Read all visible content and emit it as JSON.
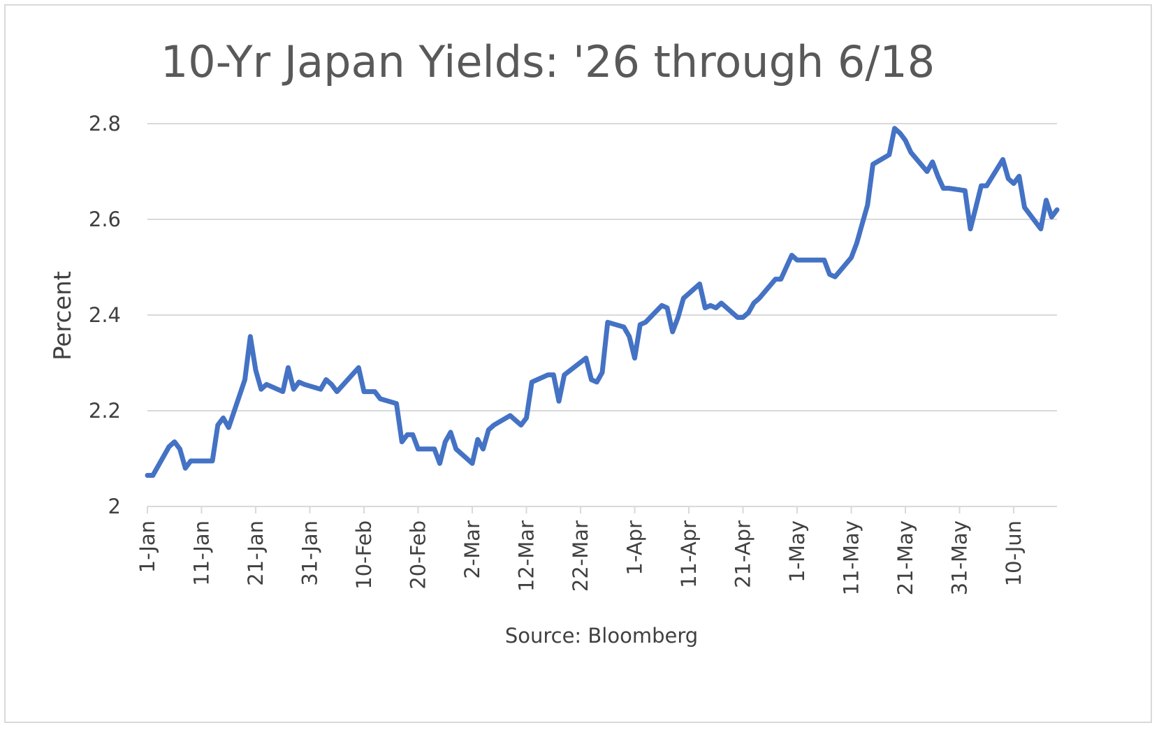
{
  "chart_data": {
    "type": "line",
    "title": "10-Yr Japan Yields: '26 through 6/18",
    "ylabel": "Percent",
    "xlabel": "Source: Bloomberg",
    "ylim": [
      2,
      2.8
    ],
    "yticks": [
      "2",
      "2.2",
      "2.4",
      "2.6",
      "2.8"
    ],
    "xticks": [
      "1-Jan",
      "11-Jan",
      "21-Jan",
      "31-Jan",
      "10-Feb",
      "20-Feb",
      "2-Mar",
      "12-Mar",
      "22-Mar",
      "1-Apr",
      "11-Apr",
      "21-Apr",
      "1-May",
      "11-May",
      "21-May",
      "31-May",
      "10-Jun"
    ],
    "xlim": [
      "2026-01-01",
      "2026-06-18"
    ],
    "grid": true,
    "series": [
      {
        "color": "#4472c4",
        "x": [
          "2026-01-01",
          "2026-01-02",
          "2026-01-05",
          "2026-01-06",
          "2026-01-07",
          "2026-01-08",
          "2026-01-09",
          "2026-01-13",
          "2026-01-14",
          "2026-01-15",
          "2026-01-16",
          "2026-01-19",
          "2026-01-20",
          "2026-01-21",
          "2026-01-22",
          "2026-01-23",
          "2026-01-26",
          "2026-01-27",
          "2026-01-28",
          "2026-01-29",
          "2026-01-30",
          "2026-02-02",
          "2026-02-03",
          "2026-02-04",
          "2026-02-05",
          "2026-02-09",
          "2026-02-10",
          "2026-02-12",
          "2026-02-13",
          "2026-02-16",
          "2026-02-17",
          "2026-02-18",
          "2026-02-19",
          "2026-02-20",
          "2026-02-23",
          "2026-02-24",
          "2026-02-25",
          "2026-02-26",
          "2026-02-27",
          "2026-03-02",
          "2026-03-03",
          "2026-03-04",
          "2026-03-05",
          "2026-03-06",
          "2026-03-09",
          "2026-03-10",
          "2026-03-11",
          "2026-03-12",
          "2026-03-13",
          "2026-03-16",
          "2026-03-17",
          "2026-03-18",
          "2026-03-19",
          "2026-03-23",
          "2026-03-24",
          "2026-03-25",
          "2026-03-26",
          "2026-03-27",
          "2026-03-30",
          "2026-03-31",
          "2026-04-01",
          "2026-04-02",
          "2026-04-03",
          "2026-04-06",
          "2026-04-07",
          "2026-04-08",
          "2026-04-09",
          "2026-04-10",
          "2026-04-13",
          "2026-04-14",
          "2026-04-15",
          "2026-04-16",
          "2026-04-17",
          "2026-04-20",
          "2026-04-21",
          "2026-04-22",
          "2026-04-23",
          "2026-04-24",
          "2026-04-27",
          "2026-04-28",
          "2026-04-30",
          "2026-05-01",
          "2026-05-06",
          "2026-05-07",
          "2026-05-08",
          "2026-05-11",
          "2026-05-12",
          "2026-05-13",
          "2026-05-14",
          "2026-05-15",
          "2026-05-18",
          "2026-05-19",
          "2026-05-20",
          "2026-05-21",
          "2026-05-22",
          "2026-05-25",
          "2026-05-26",
          "2026-05-27",
          "2026-05-28",
          "2026-05-29",
          "2026-06-01",
          "2026-06-02",
          "2026-06-03",
          "2026-06-04",
          "2026-06-05",
          "2026-06-08",
          "2026-06-09",
          "2026-06-10",
          "2026-06-11",
          "2026-06-12",
          "2026-06-15",
          "2026-06-16",
          "2026-06-17",
          "2026-06-18"
        ],
        "y": [
          2.065,
          2.065,
          2.125,
          2.135,
          2.12,
          2.08,
          2.095,
          2.095,
          2.17,
          2.185,
          2.165,
          2.265,
          2.355,
          2.285,
          2.245,
          2.255,
          2.24,
          2.29,
          2.245,
          2.26,
          2.255,
          2.245,
          2.265,
          2.255,
          2.24,
          2.29,
          2.24,
          2.24,
          2.225,
          2.215,
          2.135,
          2.15,
          2.15,
          2.12,
          2.12,
          2.09,
          2.135,
          2.155,
          2.12,
          2.09,
          2.14,
          2.12,
          2.16,
          2.17,
          2.19,
          2.18,
          2.17,
          2.185,
          2.26,
          2.275,
          2.275,
          2.22,
          2.275,
          2.31,
          2.265,
          2.26,
          2.28,
          2.385,
          2.375,
          2.355,
          2.31,
          2.38,
          2.385,
          2.42,
          2.415,
          2.365,
          2.395,
          2.435,
          2.465,
          2.415,
          2.42,
          2.415,
          2.425,
          2.395,
          2.395,
          2.405,
          2.425,
          2.435,
          2.475,
          2.475,
          2.525,
          2.515,
          2.515,
          2.485,
          2.48,
          2.52,
          2.55,
          2.59,
          2.63,
          2.715,
          2.735,
          2.79,
          2.78,
          2.765,
          2.74,
          2.7,
          2.72,
          2.69,
          2.665,
          2.665,
          2.66,
          2.58,
          2.625,
          2.67,
          2.67,
          2.725,
          2.685,
          2.675,
          2.69,
          2.625,
          2.58,
          2.64,
          2.605,
          2.62
        ]
      }
    ]
  }
}
